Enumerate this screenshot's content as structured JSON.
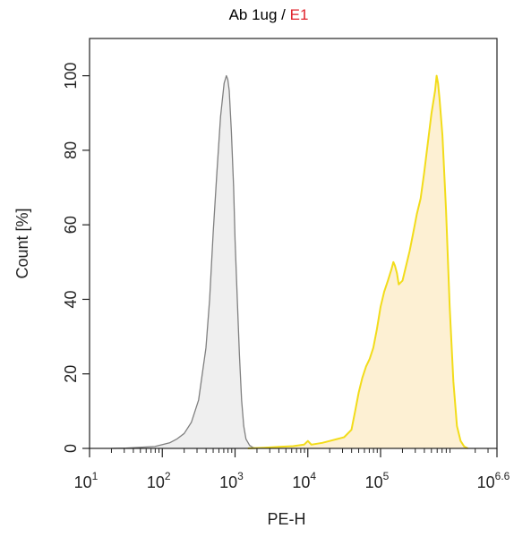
{
  "chart_data": {
    "type": "area",
    "title": {
      "prefix": "Ab 1ug",
      "separator": " / ",
      "highlight": "E1",
      "highlight_color": "#e0202a"
    },
    "xlabel": "PE-H",
    "ylabel": "Count [%]",
    "x_scale": "log10",
    "xlim": [
      10,
      3981071
    ],
    "ylim": [
      0,
      110
    ],
    "x_ticks": [
      {
        "base": "10",
        "exp": "1"
      },
      {
        "base": "10",
        "exp": "2"
      },
      {
        "base": "10",
        "exp": "3"
      },
      {
        "base": "10",
        "exp": "4"
      },
      {
        "base": "10",
        "exp": "5"
      },
      {
        "base": "10",
        "exp": "6.6"
      }
    ],
    "y_ticks": [
      "0",
      "20",
      "40",
      "60",
      "80",
      "100"
    ],
    "grid": false,
    "series": [
      {
        "role": "control",
        "stroke": "#808080",
        "fill": "#efefef",
        "x": [
          20,
          32,
          50,
          79,
          126,
          158,
          200,
          251,
          316,
          398,
          447,
          501,
          562,
          631,
          708,
          759,
          794,
          832,
          891,
          955,
          1000,
          1072,
          1148,
          1230,
          1318,
          1413,
          1585,
          1778,
          2000
        ],
        "y": [
          0,
          0.1,
          0.3,
          0.5,
          1.5,
          2.5,
          4,
          7,
          13,
          27,
          40,
          58,
          74,
          89,
          98,
          100,
          99,
          96,
          85,
          70,
          56,
          40,
          25,
          13,
          6,
          2.5,
          0.8,
          0.2,
          0
        ]
      },
      {
        "role": "sample",
        "stroke": "#f2dc1a",
        "fill": "#fdf0d3",
        "x": [
          1500,
          2500,
          4000,
          6300,
          8900,
          10000,
          11200,
          15800,
          20000,
          25100,
          31600,
          39800,
          44700,
          50100,
          56200,
          63100,
          70800,
          79400,
          89100,
          100000,
          112000,
          126000,
          141000,
          150000,
          158000,
          168000,
          178000,
          200000,
          224000,
          251000,
          282000,
          316000,
          355000,
          398000,
          447000,
          501000,
          562000,
          589000,
          617000,
          646000,
          708000,
          794000,
          891000,
          1000000,
          1122000,
          1259000,
          1413000,
          1585000
        ],
        "y": [
          0,
          0.2,
          0.4,
          0.6,
          1,
          2,
          1,
          1.5,
          2,
          2.5,
          3,
          5,
          10,
          15,
          19,
          22,
          24,
          27,
          32,
          38,
          42,
          45,
          48,
          50,
          49,
          47,
          44,
          45,
          49,
          53,
          58,
          63,
          67,
          74,
          82,
          90,
          96,
          100,
          98,
          94,
          84,
          64,
          38,
          18,
          6,
          2,
          0.5,
          0
        ]
      }
    ]
  }
}
